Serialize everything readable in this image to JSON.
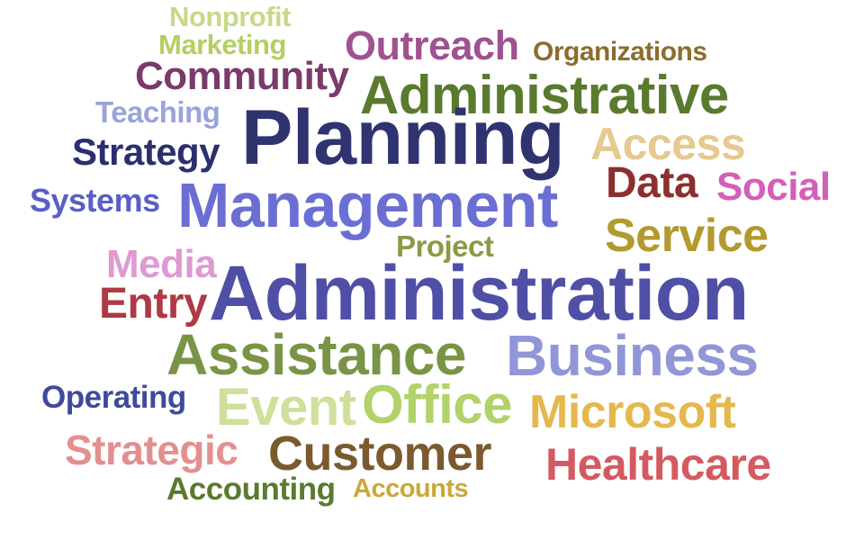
{
  "words": [
    {
      "text": "Nonprofit",
      "color": "#c5d98a"
    },
    {
      "text": "Marketing",
      "color": "#b3cf62"
    },
    {
      "text": "Outreach",
      "color": "#a0528f"
    },
    {
      "text": "Organizations",
      "color": "#8b6d2e"
    },
    {
      "text": "Community",
      "color": "#7a3a6a"
    },
    {
      "text": "Administrative",
      "color": "#5a7a2e"
    },
    {
      "text": "Teaching",
      "color": "#9aa3dc"
    },
    {
      "text": "Planning",
      "color": "#2f3370"
    },
    {
      "text": "Access",
      "color": "#e5c98e"
    },
    {
      "text": "Strategy",
      "color": "#2b2f6e"
    },
    {
      "text": "Data",
      "color": "#8c2f2f"
    },
    {
      "text": "Social",
      "color": "#d35fb8"
    },
    {
      "text": "Systems",
      "color": "#5a5fc8"
    },
    {
      "text": "Management",
      "color": "#6b6fd3"
    },
    {
      "text": "Service",
      "color": "#b39a2e"
    },
    {
      "text": "Project",
      "color": "#8a9a46"
    },
    {
      "text": "Media",
      "color": "#de9ad3"
    },
    {
      "text": "Entry",
      "color": "#ad3a45"
    },
    {
      "text": "Administration",
      "color": "#4f4fa6"
    },
    {
      "text": "Assistance",
      "color": "#7a9446"
    },
    {
      "text": "Business",
      "color": "#9196d8"
    },
    {
      "text": "Operating",
      "color": "#3f4a9b"
    },
    {
      "text": "Event",
      "color": "#cfe09a"
    },
    {
      "text": "Office",
      "color": "#b2d26a"
    },
    {
      "text": "Microsoft",
      "color": "#e5b84d"
    },
    {
      "text": "Strategic",
      "color": "#e38f8f"
    },
    {
      "text": "Customer",
      "color": "#7a5a2e"
    },
    {
      "text": "Healthcare",
      "color": "#d45a62"
    },
    {
      "text": "Accounting",
      "color": "#5a7a2e"
    },
    {
      "text": "Accounts",
      "color": "#c8a83a"
    }
  ]
}
